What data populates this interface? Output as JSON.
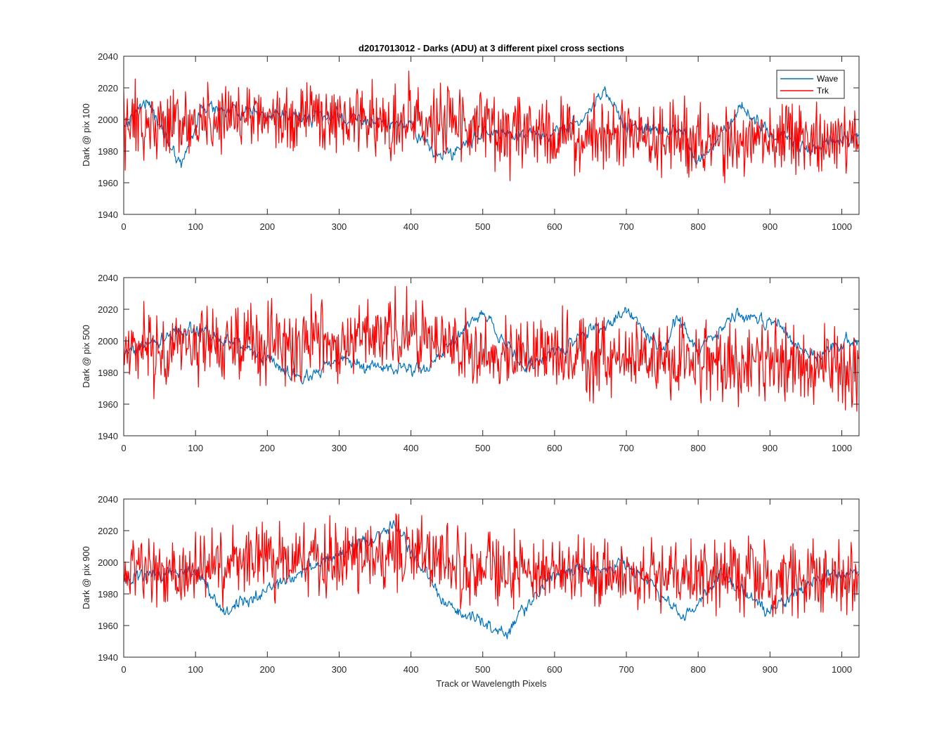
{
  "figure": {
    "title": "d2017013012 - Darks (ADU) at 3 different pixel cross sections",
    "xlabel": "Track or Wavelength Pixels"
  },
  "colors": {
    "wave": "#0072BD",
    "trk": "#FF0000",
    "axes": "#262626"
  },
  "legend": {
    "placement": "top-right of first panel",
    "entries": [
      "Wave",
      "Trk"
    ]
  },
  "chart_data": [
    {
      "type": "line",
      "ylabel": "Dark @ pix 100",
      "xlim": [
        0,
        1024
      ],
      "ylim": [
        1940,
        2040
      ],
      "xticks": [
        0,
        100,
        200,
        300,
        400,
        500,
        600,
        700,
        800,
        900,
        1000
      ],
      "yticks": [
        1940,
        1960,
        1980,
        2000,
        2020,
        2040
      ],
      "grid": false,
      "series": [
        {
          "name": "Wave",
          "n_points": 1024,
          "trend_x": [
            0,
            30,
            80,
            110,
            200,
            300,
            400,
            440,
            500,
            580,
            640,
            670,
            700,
            780,
            800,
            860,
            900,
            960,
            1024
          ],
          "trend_y": [
            1995,
            2013,
            1972,
            2008,
            2002,
            2001,
            1996,
            1975,
            1992,
            1990,
            2000,
            2018,
            1995,
            1992,
            1972,
            2008,
            1990,
            1982,
            1990
          ],
          "noise_amplitude": 4
        },
        {
          "name": "Trk",
          "n_points": 1024,
          "trend_x": [
            0,
            200,
            400,
            600,
            800,
            1024
          ],
          "trend_y": [
            1995,
            2003,
            1998,
            1990,
            1988,
            1987
          ],
          "noise_amplitude": 11,
          "range": [
            1953,
            2033
          ]
        }
      ]
    },
    {
      "type": "line",
      "ylabel": "Dark @ pix 500",
      "xlim": [
        0,
        1024
      ],
      "ylim": [
        1940,
        2040
      ],
      "xticks": [
        0,
        100,
        200,
        300,
        400,
        500,
        600,
        700,
        800,
        900,
        1000
      ],
      "yticks": [
        1940,
        1960,
        1980,
        2000,
        2020,
        2040
      ],
      "grid": false,
      "series": [
        {
          "name": "Wave",
          "n_points": 1024,
          "trend_x": [
            0,
            90,
            180,
            250,
            300,
            350,
            420,
            500,
            560,
            620,
            700,
            750,
            770,
            800,
            860,
            910,
            960,
            1024
          ],
          "trend_y": [
            1992,
            2008,
            1995,
            1975,
            1990,
            1982,
            1982,
            2018,
            1982,
            1998,
            2018,
            1995,
            2015,
            1995,
            2018,
            2010,
            1990,
            2002
          ],
          "noise_amplitude": 4
        },
        {
          "name": "Trk",
          "n_points": 1024,
          "trend_x": [
            0,
            150,
            300,
            380,
            500,
            700,
            850,
            1024
          ],
          "trend_y": [
            1993,
            1998,
            2000,
            2005,
            1993,
            1990,
            1985,
            1982
          ],
          "noise_amplitude": 12,
          "range": [
            1950,
            2036
          ]
        }
      ]
    },
    {
      "type": "line",
      "ylabel": "Dark @ pix 900",
      "xlim": [
        0,
        1024
      ],
      "ylim": [
        1940,
        2040
      ],
      "xticks": [
        0,
        100,
        200,
        300,
        400,
        500,
        600,
        700,
        800,
        900,
        1000
      ],
      "yticks": [
        1940,
        1960,
        1980,
        2000,
        2020,
        2040
      ],
      "grid": false,
      "series": [
        {
          "name": "Wave",
          "n_points": 1024,
          "trend_x": [
            0,
            100,
            140,
            250,
            300,
            380,
            450,
            530,
            600,
            700,
            780,
            830,
            900,
            960,
            1024
          ],
          "trend_y": [
            1990,
            1995,
            1968,
            1995,
            2005,
            2022,
            1972,
            1955,
            1993,
            2000,
            1965,
            1992,
            1970,
            1988,
            1993
          ],
          "noise_amplitude": 4
        },
        {
          "name": "Trk",
          "n_points": 1024,
          "trend_x": [
            0,
            150,
            300,
            380,
            500,
            700,
            900,
            1024
          ],
          "trend_y": [
            1992,
            2000,
            2002,
            2008,
            1995,
            1993,
            1990,
            1990
          ],
          "noise_amplitude": 11,
          "range": [
            1956,
            2032
          ]
        }
      ]
    }
  ]
}
